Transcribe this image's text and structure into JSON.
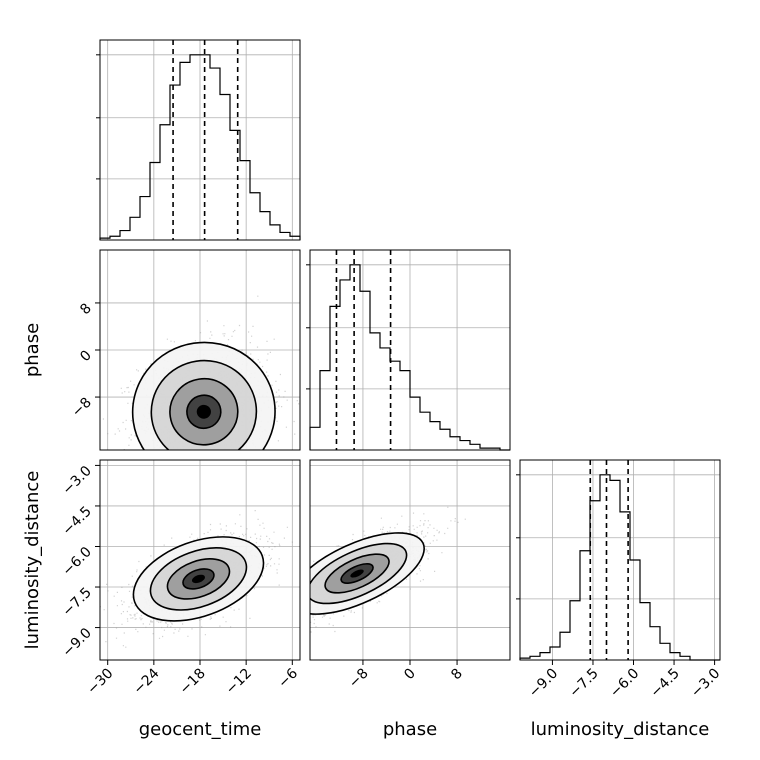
{
  "chart_data": {
    "type": "corner",
    "parameters": [
      "geocent_time",
      "phase",
      "luminosity_distance"
    ],
    "axis_labels": {
      "geocent_time": "geocent_time",
      "phase": "phase",
      "luminosity_distance": "luminosity_distance"
    },
    "ranges": {
      "geocent_time": [
        -31,
        -5
      ],
      "phase": [
        -17,
        17
      ],
      "luminosity_distance": [
        -10.2,
        -2.8
      ]
    },
    "ticks": {
      "geocent_time": [
        {
          "value": -30,
          "label": "−30"
        },
        {
          "value": -24,
          "label": "−24"
        },
        {
          "value": -18,
          "label": "−18"
        },
        {
          "value": -12,
          "label": "−12"
        },
        {
          "value": -6,
          "label": "−6"
        }
      ],
      "phase": [
        {
          "value": -8,
          "label": "−8"
        },
        {
          "value": 0,
          "label": "0"
        },
        {
          "value": 8,
          "label": "8"
        }
      ],
      "luminosity_distance": [
        {
          "value": -9.0,
          "label": "−9.0"
        },
        {
          "value": -7.5,
          "label": "−7.5"
        },
        {
          "value": -6.0,
          "label": "−6.0"
        },
        {
          "value": -4.5,
          "label": "−4.5"
        },
        {
          "value": -3.0,
          "label": "−3.0"
        }
      ]
    },
    "histograms": {
      "geocent_time": {
        "bin_edges": [
          -31,
          -29.7,
          -28.4,
          -27.1,
          -25.8,
          -24.5,
          -23.2,
          -21.9,
          -20.6,
          -19.3,
          -18,
          -16.7,
          -15.4,
          -14.1,
          -12.8,
          -11.5,
          -10.2,
          -8.9,
          -7.6,
          -6.3,
          -5
        ],
        "counts": [
          0.01,
          0.02,
          0.05,
          0.12,
          0.23,
          0.41,
          0.61,
          0.82,
          0.94,
          0.98,
          0.98,
          0.91,
          0.77,
          0.58,
          0.42,
          0.25,
          0.15,
          0.08,
          0.04,
          0.02
        ],
        "quantiles": [
          -21.5,
          -17.4,
          -13.1
        ]
      },
      "phase": {
        "bin_edges": [
          -17,
          -15.3,
          -13.6,
          -11.9,
          -10.2,
          -8.5,
          -6.8,
          -5.1,
          -3.4,
          -1.7,
          0,
          1.7,
          3.4,
          5.1,
          6.8,
          8.5,
          10.2,
          11.9,
          13.6,
          15.3,
          17
        ],
        "counts": [
          0.12,
          0.42,
          0.76,
          0.9,
          0.98,
          0.84,
          0.62,
          0.54,
          0.47,
          0.42,
          0.28,
          0.2,
          0.15,
          0.11,
          0.07,
          0.05,
          0.03,
          0.01,
          0.01,
          0.0
        ],
        "quantiles": [
          -12.5,
          -9.5,
          -3.3
        ]
      },
      "luminosity_distance": {
        "bin_edges": [
          -10.2,
          -9.83,
          -9.46,
          -9.09,
          -8.72,
          -8.35,
          -7.98,
          -7.61,
          -7.24,
          -6.87,
          -6.5,
          -6.13,
          -5.76,
          -5.39,
          -5.02,
          -4.65,
          -4.28,
          -3.91,
          -3.54,
          -3.17,
          -2.8
        ],
        "counts": [
          0.01,
          0.02,
          0.04,
          0.07,
          0.15,
          0.32,
          0.59,
          0.86,
          1.0,
          0.97,
          0.8,
          0.54,
          0.31,
          0.18,
          0.09,
          0.04,
          0.02,
          0.0,
          0.0,
          0.0
        ],
        "quantiles": [
          -7.6,
          -7.0,
          -6.2
        ]
      }
    },
    "pairs": [
      {
        "x": "geocent_time",
        "y": "phase",
        "mean": [
          -17.5,
          -10.5
        ],
        "std": [
          4.2,
          5.4
        ],
        "corr": 0.15
      },
      {
        "x": "geocent_time",
        "y": "luminosity_distance",
        "mean": [
          -18.2,
          -7.2
        ],
        "std": [
          4.0,
          0.75
        ],
        "corr": 0.55
      },
      {
        "x": "phase",
        "y": "luminosity_distance",
        "mean": [
          -9.0,
          -7.0
        ],
        "std": [
          5.6,
          0.75
        ],
        "corr": 0.75
      }
    ],
    "contour_levels": 4,
    "grid": true
  }
}
